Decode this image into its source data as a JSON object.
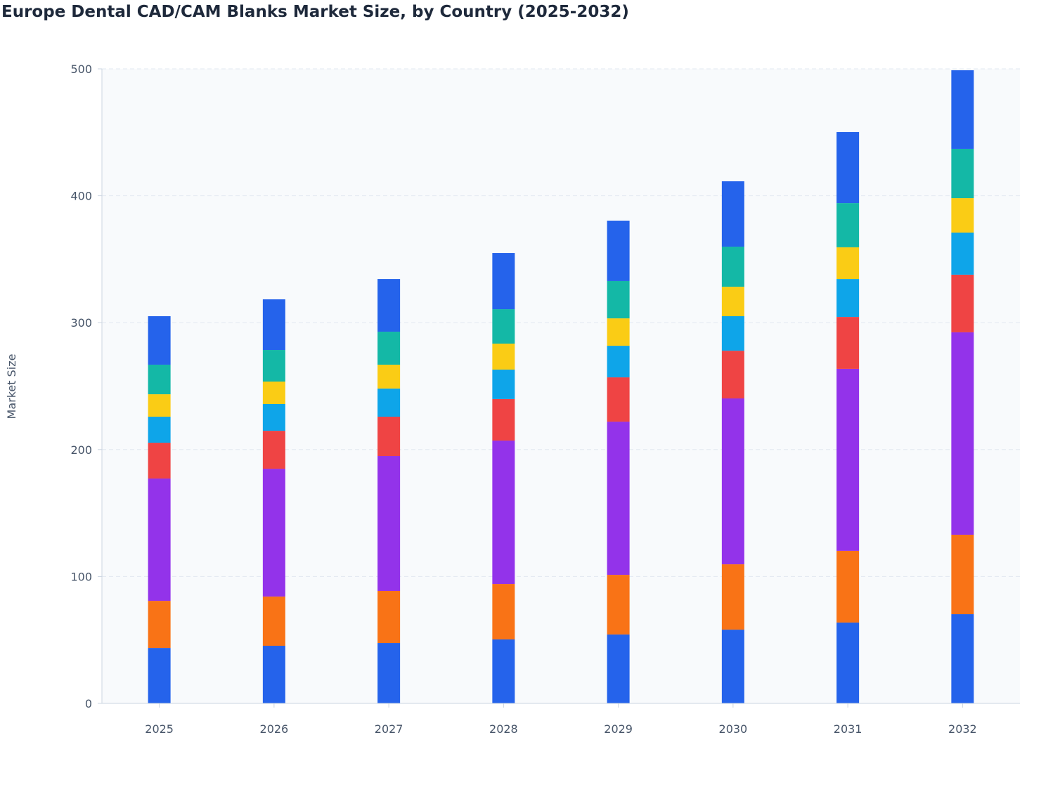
{
  "chart_data": {
    "type": "bar",
    "stacked": true,
    "title": "Europe Dental CAD/CAM Blanks Market Size, by Country (2025-2032)",
    "xlabel": "",
    "ylabel": "Market Size",
    "ylim": [
      0,
      500
    ],
    "yticks": [
      0,
      100,
      200,
      300,
      400,
      500
    ],
    "grid": true,
    "legend": "none",
    "categories": [
      "2025",
      "2026",
      "2027",
      "2028",
      "2029",
      "2030",
      "2031",
      "2032"
    ],
    "series": [
      {
        "color": "#2563eb",
        "values": [
          43.7,
          45.4,
          47.6,
          50.4,
          54.3,
          58.1,
          63.7,
          70.3
        ]
      },
      {
        "color": "#f97316",
        "values": [
          37.1,
          38.8,
          41.0,
          43.7,
          47.0,
          51.5,
          56.5,
          62.6
        ]
      },
      {
        "color": "#9333ea",
        "values": [
          96.4,
          100.7,
          106.3,
          113.0,
          120.7,
          130.7,
          143.4,
          159.5
        ]
      },
      {
        "color": "#ef4444",
        "values": [
          28.2,
          29.9,
          31.0,
          32.7,
          34.9,
          37.6,
          40.9,
          45.4
        ]
      },
      {
        "color": "#0ea5e9",
        "values": [
          20.5,
          21.1,
          22.2,
          23.2,
          24.9,
          27.2,
          29.9,
          33.2
        ]
      },
      {
        "color": "#facc15",
        "values": [
          17.7,
          17.7,
          18.8,
          20.5,
          21.6,
          23.2,
          25.0,
          27.1
        ]
      },
      {
        "color": "#14b8a6",
        "values": [
          23.3,
          24.9,
          26.0,
          27.1,
          29.4,
          31.6,
          34.8,
          38.8
        ]
      },
      {
        "color": "#2563eb",
        "values": [
          38.2,
          39.9,
          41.5,
          44.3,
          47.6,
          51.5,
          56.0,
          62.0
        ]
      }
    ]
  }
}
